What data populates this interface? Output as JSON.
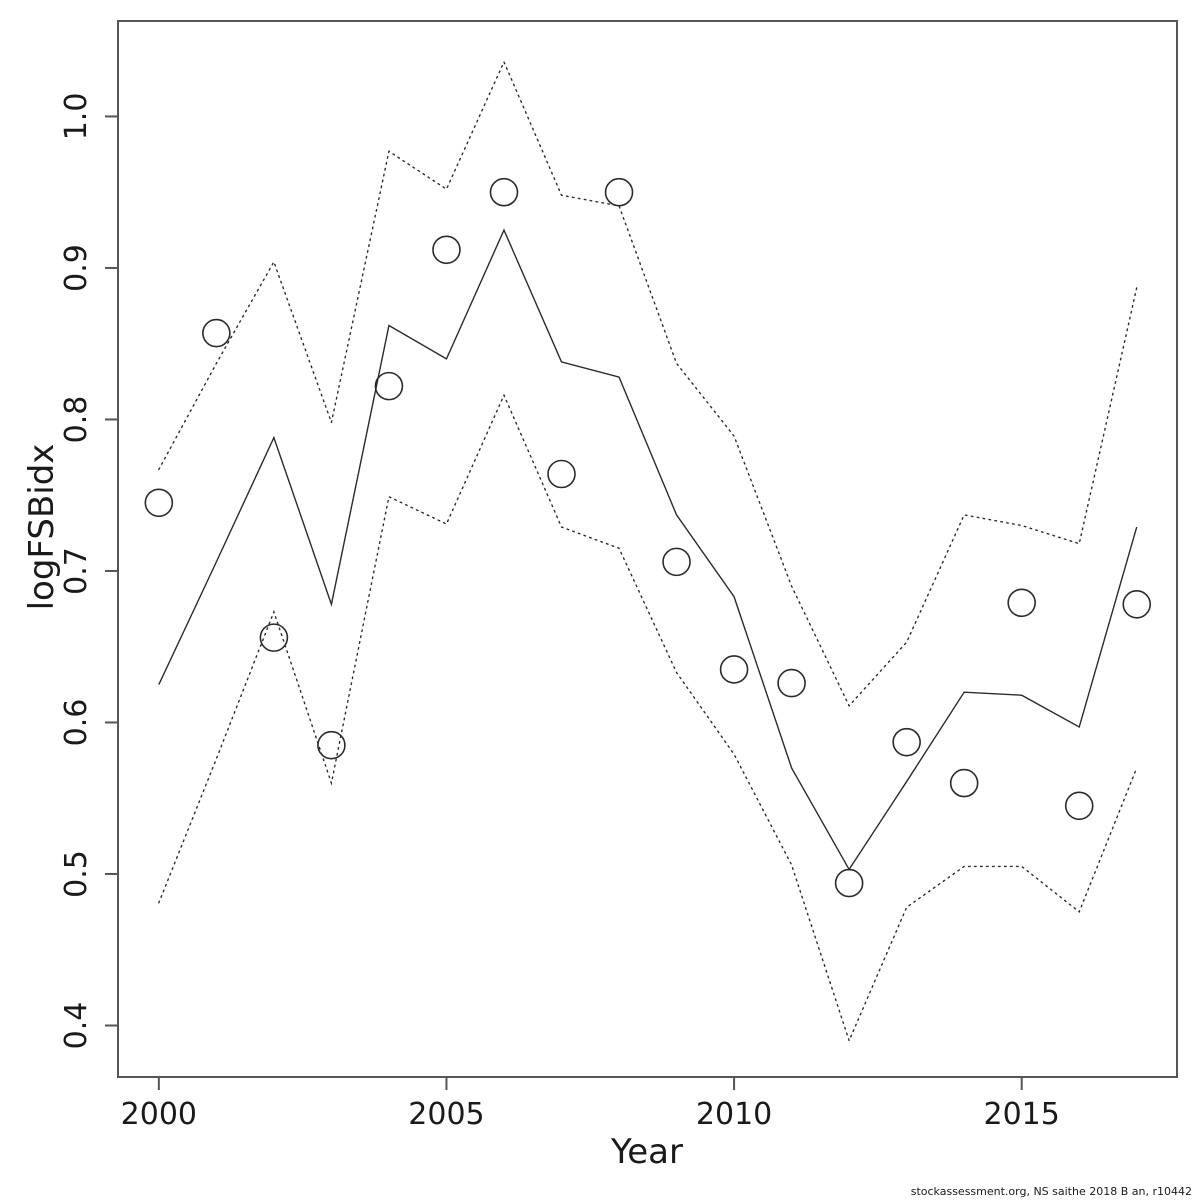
{
  "chart_data": {
    "type": "line",
    "title": "",
    "xlabel": "Year",
    "ylabel": "logFSBidx",
    "footer": "stockassessment.org, NS saithe 2018 B an, r10442",
    "grid": false,
    "legend": null,
    "xlim": [
      1999.29,
      2017.7
    ],
    "ylim": [
      0.366,
      1.063
    ],
    "x_ticks": {
      "values": [
        2000,
        2005,
        2010,
        2015
      ],
      "labels": [
        "2000",
        "2005",
        "2010",
        "2015"
      ]
    },
    "y_ticks": {
      "values": [
        0.4,
        0.5,
        0.6,
        0.7,
        0.8,
        0.9,
        1.0
      ],
      "labels": [
        "0.4",
        "0.5",
        "0.6",
        "0.7",
        "0.8",
        "0.9",
        "1.0"
      ]
    },
    "x": [
      2000,
      2001,
      2002,
      2003,
      2004,
      2005,
      2006,
      2007,
      2008,
      2009,
      2010,
      2011,
      2012,
      2013,
      2014,
      2015,
      2016,
      2017
    ],
    "series": [
      {
        "name": "upper-confidence-bound",
        "style": "dotted-line",
        "values": [
          0.767,
          0.837,
          0.904,
          0.798,
          0.977,
          0.952,
          1.036,
          0.948,
          0.941,
          0.837,
          0.789,
          0.69,
          0.611,
          0.653,
          0.737,
          0.73,
          0.718,
          0.887
        ]
      },
      {
        "name": "lower-confidence-bound",
        "style": "dotted-line",
        "values": [
          0.481,
          0.576,
          0.673,
          0.56,
          0.749,
          0.731,
          0.816,
          0.729,
          0.715,
          0.633,
          0.579,
          0.506,
          0.39,
          0.478,
          0.505,
          0.505,
          0.475,
          0.57
        ]
      },
      {
        "name": "model-fit",
        "style": "solid-line",
        "values": [
          0.625,
          0.706,
          0.788,
          0.678,
          0.862,
          0.84,
          0.925,
          0.838,
          0.828,
          0.737,
          0.683,
          0.57,
          0.503,
          0.561,
          0.62,
          0.618,
          0.597,
          0.729
        ]
      },
      {
        "name": "observed-index",
        "style": "open-circle-points",
        "values": [
          0.745,
          0.857,
          0.656,
          0.585,
          0.822,
          0.912,
          0.95,
          0.764,
          0.95,
          0.706,
          0.635,
          0.626,
          0.494,
          0.587,
          0.56,
          0.679,
          0.545,
          0.678
        ]
      }
    ]
  }
}
